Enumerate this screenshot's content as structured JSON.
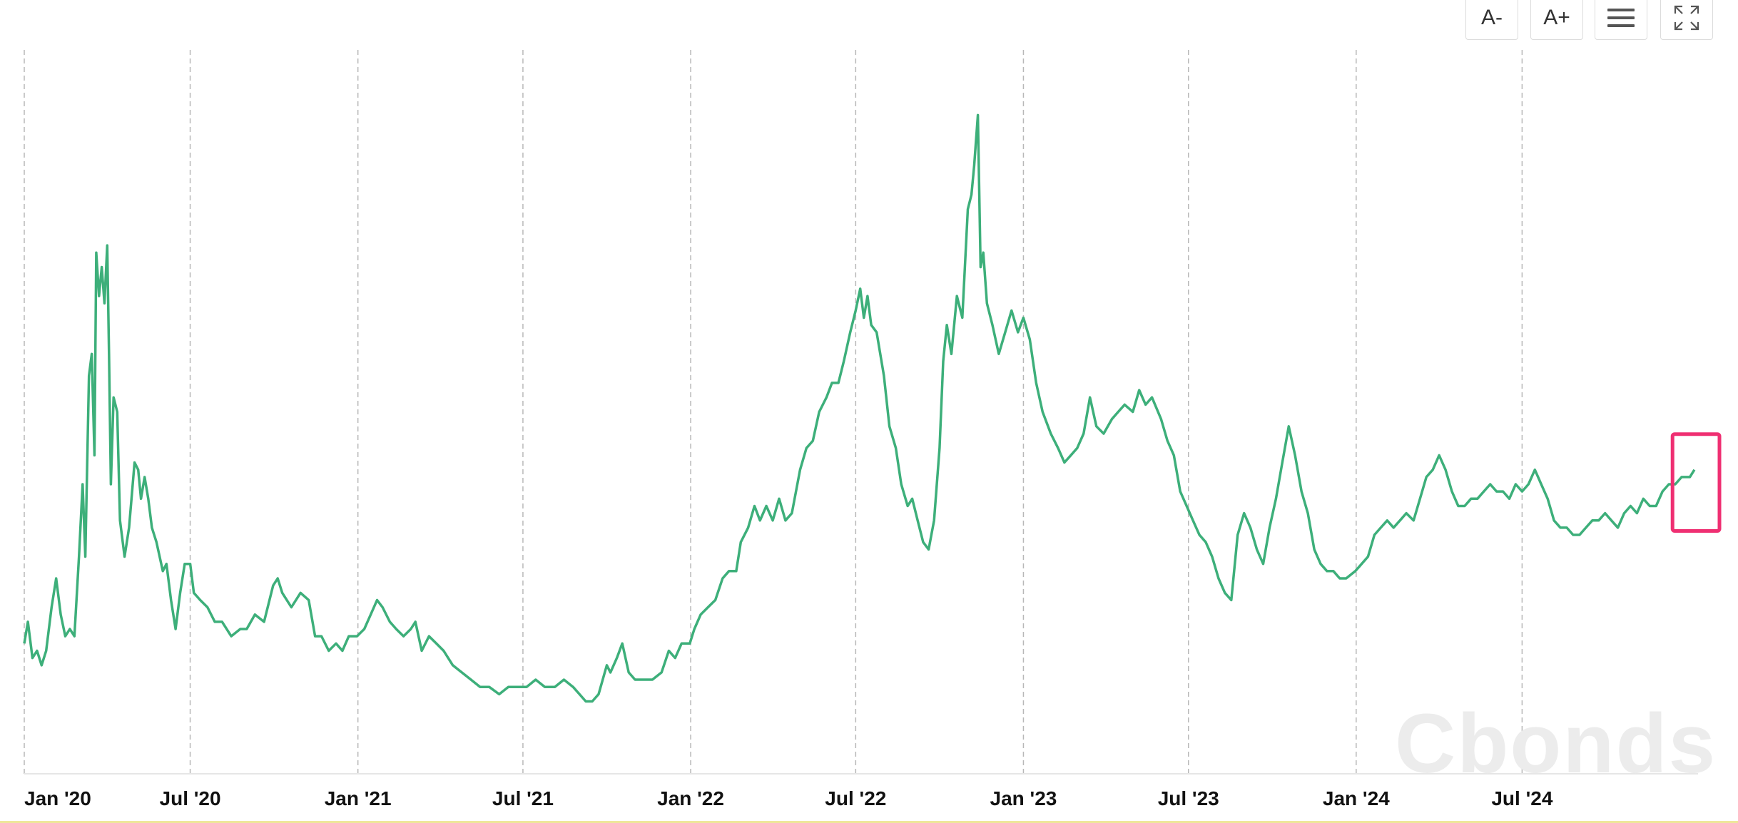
{
  "toolbar": {
    "decrease_font_label": "A-",
    "increase_font_label": "A+",
    "menu_icon": "hamburger-menu-icon",
    "fullscreen_icon": "fullscreen-expand-icon"
  },
  "watermark": "Cbonds",
  "colors": {
    "line": "#3daf7a",
    "grid": "#b8b8b8",
    "highlight": "#ef2f72",
    "axis": "#e6e6e6"
  },
  "chart_data": {
    "type": "line",
    "title": "",
    "xlabel": "",
    "ylabel": "",
    "x_ticks": [
      "Jan '20",
      "Jul '20",
      "Jan '21",
      "Jul '21",
      "Jan '22",
      "Jul '22",
      "Jan '23",
      "Jul '23",
      "Jan '24",
      "Jul '24"
    ],
    "x_tick_dates": [
      "2020-01-01",
      "2020-07-01",
      "2021-01-01",
      "2021-07-01",
      "2022-01-01",
      "2022-07-01",
      "2023-01-01",
      "2023-07-01",
      "2024-01-01",
      "2024-07-01"
    ],
    "xlim": [
      "2020-01-01",
      "2025-01-10"
    ],
    "ylim": [
      0,
      100
    ],
    "grid": "vertical dashed",
    "y_axis_labels_visible": false,
    "series": [
      {
        "values": [
          [
            "2020-01-01",
            18
          ],
          [
            "2020-01-05",
            21
          ],
          [
            "2020-01-10",
            16
          ],
          [
            "2020-01-15",
            17
          ],
          [
            "2020-01-20",
            15
          ],
          [
            "2020-01-25",
            17
          ],
          [
            "2020-01-31",
            23
          ],
          [
            "2020-02-05",
            27
          ],
          [
            "2020-02-10",
            22
          ],
          [
            "2020-02-15",
            19
          ],
          [
            "2020-02-20",
            20
          ],
          [
            "2020-02-25",
            19
          ],
          [
            "2020-03-01",
            30
          ],
          [
            "2020-03-05",
            40
          ],
          [
            "2020-03-08",
            30
          ],
          [
            "2020-03-12",
            55
          ],
          [
            "2020-03-15",
            58
          ],
          [
            "2020-03-18",
            44
          ],
          [
            "2020-03-20",
            72
          ],
          [
            "2020-03-23",
            66
          ],
          [
            "2020-03-26",
            70
          ],
          [
            "2020-03-29",
            65
          ],
          [
            "2020-04-01",
            73
          ],
          [
            "2020-04-03",
            58
          ],
          [
            "2020-04-05",
            40
          ],
          [
            "2020-04-08",
            52
          ],
          [
            "2020-04-12",
            50
          ],
          [
            "2020-04-15",
            35
          ],
          [
            "2020-04-20",
            30
          ],
          [
            "2020-04-25",
            34
          ],
          [
            "2020-05-01",
            43
          ],
          [
            "2020-05-05",
            42
          ],
          [
            "2020-05-08",
            38
          ],
          [
            "2020-05-12",
            41
          ],
          [
            "2020-05-16",
            38
          ],
          [
            "2020-05-20",
            34
          ],
          [
            "2020-05-25",
            32
          ],
          [
            "2020-06-01",
            28
          ],
          [
            "2020-06-05",
            29
          ],
          [
            "2020-06-10",
            24
          ],
          [
            "2020-06-15",
            20
          ],
          [
            "2020-06-20",
            25
          ],
          [
            "2020-06-25",
            29
          ],
          [
            "2020-07-01",
            29
          ],
          [
            "2020-07-05",
            25
          ],
          [
            "2020-07-12",
            24
          ],
          [
            "2020-07-20",
            23
          ],
          [
            "2020-07-28",
            21
          ],
          [
            "2020-08-05",
            21
          ],
          [
            "2020-08-15",
            19
          ],
          [
            "2020-08-25",
            20
          ],
          [
            "2020-09-01",
            20
          ],
          [
            "2020-09-10",
            22
          ],
          [
            "2020-09-20",
            21
          ],
          [
            "2020-09-30",
            26
          ],
          [
            "2020-10-05",
            27
          ],
          [
            "2020-10-10",
            25
          ],
          [
            "2020-10-20",
            23
          ],
          [
            "2020-10-30",
            25
          ],
          [
            "2020-11-08",
            24
          ],
          [
            "2020-11-15",
            19
          ],
          [
            "2020-11-22",
            19
          ],
          [
            "2020-11-30",
            17
          ],
          [
            "2020-12-08",
            18
          ],
          [
            "2020-12-15",
            17
          ],
          [
            "2020-12-22",
            19
          ],
          [
            "2020-12-31",
            19
          ],
          [
            "2021-01-08",
            20
          ],
          [
            "2021-01-15",
            22
          ],
          [
            "2021-01-22",
            24
          ],
          [
            "2021-01-28",
            23
          ],
          [
            "2021-02-05",
            21
          ],
          [
            "2021-02-12",
            20
          ],
          [
            "2021-02-20",
            19
          ],
          [
            "2021-02-28",
            20
          ],
          [
            "2021-03-05",
            21
          ],
          [
            "2021-03-12",
            17
          ],
          [
            "2021-03-20",
            19
          ],
          [
            "2021-03-28",
            18
          ],
          [
            "2021-04-05",
            17
          ],
          [
            "2021-04-15",
            15
          ],
          [
            "2021-04-25",
            14
          ],
          [
            "2021-05-05",
            13
          ],
          [
            "2021-05-15",
            12
          ],
          [
            "2021-05-25",
            12
          ],
          [
            "2021-06-05",
            11
          ],
          [
            "2021-06-15",
            12
          ],
          [
            "2021-06-25",
            12
          ],
          [
            "2021-07-05",
            12
          ],
          [
            "2021-07-15",
            13
          ],
          [
            "2021-07-25",
            12
          ],
          [
            "2021-08-05",
            12
          ],
          [
            "2021-08-15",
            13
          ],
          [
            "2021-08-25",
            12
          ],
          [
            "2021-09-01",
            11
          ],
          [
            "2021-09-08",
            10
          ],
          [
            "2021-09-15",
            10
          ],
          [
            "2021-09-22",
            11
          ],
          [
            "2021-10-01",
            15
          ],
          [
            "2021-10-05",
            14
          ],
          [
            "2021-10-12",
            16
          ],
          [
            "2021-10-18",
            18
          ],
          [
            "2021-10-25",
            14
          ],
          [
            "2021-11-01",
            13
          ],
          [
            "2021-11-10",
            13
          ],
          [
            "2021-11-20",
            13
          ],
          [
            "2021-11-30",
            14
          ],
          [
            "2021-12-08",
            17
          ],
          [
            "2021-12-15",
            16
          ],
          [
            "2021-12-22",
            18
          ],
          [
            "2021-12-31",
            18
          ],
          [
            "2022-01-05",
            20
          ],
          [
            "2022-01-12",
            22
          ],
          [
            "2022-01-20",
            23
          ],
          [
            "2022-01-28",
            24
          ],
          [
            "2022-02-05",
            27
          ],
          [
            "2022-02-12",
            28
          ],
          [
            "2022-02-20",
            28
          ],
          [
            "2022-02-25",
            32
          ],
          [
            "2022-03-05",
            34
          ],
          [
            "2022-03-12",
            37
          ],
          [
            "2022-03-18",
            35
          ],
          [
            "2022-03-25",
            37
          ],
          [
            "2022-04-01",
            35
          ],
          [
            "2022-04-08",
            38
          ],
          [
            "2022-04-15",
            35
          ],
          [
            "2022-04-22",
            36
          ],
          [
            "2022-05-01",
            42
          ],
          [
            "2022-05-08",
            45
          ],
          [
            "2022-05-15",
            46
          ],
          [
            "2022-05-22",
            50
          ],
          [
            "2022-05-30",
            52
          ],
          [
            "2022-06-05",
            54
          ],
          [
            "2022-06-12",
            54
          ],
          [
            "2022-06-18",
            57
          ],
          [
            "2022-06-25",
            61
          ],
          [
            "2022-07-01",
            64
          ],
          [
            "2022-07-06",
            67
          ],
          [
            "2022-07-10",
            63
          ],
          [
            "2022-07-14",
            66
          ],
          [
            "2022-07-18",
            62
          ],
          [
            "2022-07-24",
            61
          ],
          [
            "2022-08-01",
            55
          ],
          [
            "2022-08-07",
            48
          ],
          [
            "2022-08-14",
            45
          ],
          [
            "2022-08-20",
            40
          ],
          [
            "2022-08-27",
            37
          ],
          [
            "2022-09-01",
            38
          ],
          [
            "2022-09-07",
            35
          ],
          [
            "2022-09-13",
            32
          ],
          [
            "2022-09-19",
            31
          ],
          [
            "2022-09-25",
            35
          ],
          [
            "2022-10-01",
            45
          ],
          [
            "2022-10-05",
            57
          ],
          [
            "2022-10-09",
            62
          ],
          [
            "2022-10-14",
            58
          ],
          [
            "2022-10-20",
            66
          ],
          [
            "2022-10-26",
            63
          ],
          [
            "2022-11-01",
            78
          ],
          [
            "2022-11-05",
            80
          ],
          [
            "2022-11-08",
            84
          ],
          [
            "2022-11-12",
            91
          ],
          [
            "2022-11-15",
            70
          ],
          [
            "2022-11-18",
            72
          ],
          [
            "2022-11-22",
            65
          ],
          [
            "2022-11-28",
            62
          ],
          [
            "2022-12-05",
            58
          ],
          [
            "2022-12-12",
            61
          ],
          [
            "2022-12-19",
            64
          ],
          [
            "2022-12-26",
            61
          ],
          [
            "2023-01-01",
            63
          ],
          [
            "2023-01-08",
            60
          ],
          [
            "2023-01-15",
            54
          ],
          [
            "2023-01-22",
            50
          ],
          [
            "2023-01-31",
            47
          ],
          [
            "2023-02-08",
            45
          ],
          [
            "2023-02-15",
            43
          ],
          [
            "2023-02-22",
            44
          ],
          [
            "2023-03-01",
            45
          ],
          [
            "2023-03-08",
            47
          ],
          [
            "2023-03-15",
            52
          ],
          [
            "2023-03-22",
            48
          ],
          [
            "2023-03-30",
            47
          ],
          [
            "2023-04-08",
            49
          ],
          [
            "2023-04-15",
            50
          ],
          [
            "2023-04-22",
            51
          ],
          [
            "2023-05-01",
            50
          ],
          [
            "2023-05-08",
            53
          ],
          [
            "2023-05-15",
            51
          ],
          [
            "2023-05-22",
            52
          ],
          [
            "2023-06-01",
            49
          ],
          [
            "2023-06-08",
            46
          ],
          [
            "2023-06-15",
            44
          ],
          [
            "2023-06-22",
            39
          ],
          [
            "2023-06-29",
            37
          ],
          [
            "2023-07-06",
            35
          ],
          [
            "2023-07-13",
            33
          ],
          [
            "2023-07-20",
            32
          ],
          [
            "2023-07-27",
            30
          ],
          [
            "2023-08-03",
            27
          ],
          [
            "2023-08-10",
            25
          ],
          [
            "2023-08-17",
            24
          ],
          [
            "2023-08-24",
            33
          ],
          [
            "2023-08-31",
            36
          ],
          [
            "2023-09-07",
            34
          ],
          [
            "2023-09-14",
            31
          ],
          [
            "2023-09-21",
            29
          ],
          [
            "2023-09-28",
            34
          ],
          [
            "2023-10-05",
            38
          ],
          [
            "2023-10-12",
            43
          ],
          [
            "2023-10-19",
            48
          ],
          [
            "2023-10-26",
            44
          ],
          [
            "2023-11-02",
            39
          ],
          [
            "2023-11-09",
            36
          ],
          [
            "2023-11-16",
            31
          ],
          [
            "2023-11-23",
            29
          ],
          [
            "2023-11-30",
            28
          ],
          [
            "2023-12-07",
            28
          ],
          [
            "2023-12-14",
            27
          ],
          [
            "2023-12-21",
            27
          ],
          [
            "2023-12-31",
            28
          ],
          [
            "2024-01-07",
            29
          ],
          [
            "2024-01-14",
            30
          ],
          [
            "2024-01-21",
            33
          ],
          [
            "2024-01-28",
            34
          ],
          [
            "2024-02-04",
            35
          ],
          [
            "2024-02-11",
            34
          ],
          [
            "2024-02-18",
            35
          ],
          [
            "2024-02-25",
            36
          ],
          [
            "2024-03-04",
            35
          ],
          [
            "2024-03-11",
            38
          ],
          [
            "2024-03-18",
            41
          ],
          [
            "2024-03-25",
            42
          ],
          [
            "2024-04-01",
            44
          ],
          [
            "2024-04-08",
            42
          ],
          [
            "2024-04-15",
            39
          ],
          [
            "2024-04-22",
            37
          ],
          [
            "2024-04-29",
            37
          ],
          [
            "2024-05-06",
            38
          ],
          [
            "2024-05-13",
            38
          ],
          [
            "2024-05-20",
            39
          ],
          [
            "2024-05-27",
            40
          ],
          [
            "2024-06-03",
            39
          ],
          [
            "2024-06-10",
            39
          ],
          [
            "2024-06-17",
            38
          ],
          [
            "2024-06-24",
            40
          ],
          [
            "2024-07-01",
            39
          ],
          [
            "2024-07-08",
            40
          ],
          [
            "2024-07-15",
            42
          ],
          [
            "2024-07-22",
            40
          ],
          [
            "2024-07-29",
            38
          ],
          [
            "2024-08-05",
            35
          ],
          [
            "2024-08-12",
            34
          ],
          [
            "2024-08-19",
            34
          ],
          [
            "2024-08-26",
            33
          ],
          [
            "2024-09-02",
            33
          ],
          [
            "2024-09-09",
            34
          ],
          [
            "2024-09-16",
            35
          ],
          [
            "2024-09-23",
            35
          ],
          [
            "2024-09-30",
            36
          ],
          [
            "2024-10-07",
            35
          ],
          [
            "2024-10-14",
            34
          ],
          [
            "2024-10-21",
            36
          ],
          [
            "2024-10-28",
            37
          ],
          [
            "2024-11-04",
            36
          ],
          [
            "2024-11-11",
            38
          ],
          [
            "2024-11-18",
            37
          ],
          [
            "2024-11-25",
            37
          ],
          [
            "2024-12-02",
            39
          ],
          [
            "2024-12-09",
            40
          ],
          [
            "2024-12-16",
            40
          ],
          [
            "2024-12-23",
            41
          ],
          [
            "2025-01-01",
            41
          ],
          [
            "2025-01-06",
            42
          ]
        ]
      }
    ],
    "annotation": {
      "type": "highlight-box",
      "from": "2024-12-13",
      "to": "2025-01-10"
    }
  }
}
